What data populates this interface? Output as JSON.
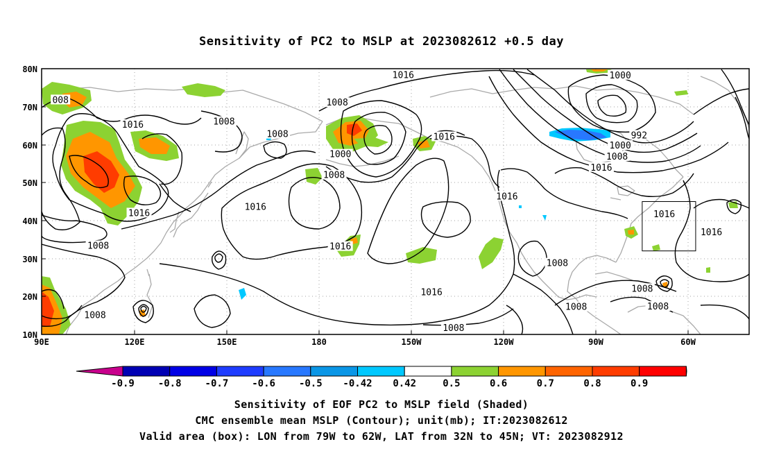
{
  "title": "Sensitivity of PC2 to MSLP at 2023082612 +0.5 day",
  "axes": {
    "lat_ticks": [
      "80N",
      "70N",
      "60N",
      "50N",
      "40N",
      "30N",
      "20N",
      "10N"
    ],
    "lon_ticks": [
      "90E",
      "120E",
      "150E",
      "180",
      "150W",
      "120W",
      "90W",
      "60W"
    ]
  },
  "contour_labels": [
    {
      "text": "008",
      "lon": 96,
      "lat": 71.7
    },
    {
      "text": "1016",
      "lon": 119,
      "lat": 65.2
    },
    {
      "text": "1008",
      "lon": 148,
      "lat": 66.0
    },
    {
      "text": "1008",
      "lon": 165,
      "lat": 62.7
    },
    {
      "text": "1008",
      "lon": -176,
      "lat": 71.0
    },
    {
      "text": "1016",
      "lon": -155,
      "lat": 78.3
    },
    {
      "text": "1000",
      "lon": -175,
      "lat": 57.4
    },
    {
      "text": "1016",
      "lon": -142,
      "lat": 62.0
    },
    {
      "text": "1008",
      "lon": -177,
      "lat": 51.9
    },
    {
      "text": "1016",
      "lon": -122,
      "lat": 46.3
    },
    {
      "text": "1000",
      "lon": -86,
      "lat": 78.2
    },
    {
      "text": "992",
      "lon": -80,
      "lat": 62.4
    },
    {
      "text": "1000",
      "lon": -86,
      "lat": 59.7
    },
    {
      "text": "1008",
      "lon": -87,
      "lat": 56.8
    },
    {
      "text": "1016",
      "lon": -92,
      "lat": 53.9
    },
    {
      "text": "1016",
      "lon": 158,
      "lat": 43.5
    },
    {
      "text": "1016",
      "lon": -72,
      "lat": 41.6
    },
    {
      "text": "1016",
      "lon": -57,
      "lat": 36.9
    },
    {
      "text": "1016",
      "lon": 121,
      "lat": 41.9
    },
    {
      "text": "1008",
      "lon": 108,
      "lat": 33.3
    },
    {
      "text": "1016",
      "lon": -175,
      "lat": 33.1
    },
    {
      "text": "1016",
      "lon": -146,
      "lat": 21.1
    },
    {
      "text": "1008",
      "lon": -106,
      "lat": 28.7
    },
    {
      "text": "1008",
      "lon": -79,
      "lat": 22.0
    },
    {
      "text": "1008",
      "lon": -74,
      "lat": 17.3
    },
    {
      "text": "1008",
      "lon": -100,
      "lat": 17.2
    },
    {
      "text": "1008",
      "lon": -139,
      "lat": 11.6
    },
    {
      "text": "1008",
      "lon": 107,
      "lat": 15.0
    }
  ],
  "colorbar": {
    "labels": [
      "-0.9",
      "-0.8",
      "-0.7",
      "-0.6",
      "-0.5",
      "-0.42",
      "0.42",
      "0.5",
      "0.6",
      "0.7",
      "0.8",
      "0.9"
    ],
    "colors": [
      "#c8008c",
      "#0000b4",
      "#0000e6",
      "#1e3cff",
      "#2878ff",
      "#0a96e6",
      "#00c8ff",
      "#ffffff",
      "#8cd232",
      "#ff9600",
      "#ff6400",
      "#ff3c00",
      "#ff0000",
      "#ff96c8"
    ]
  },
  "valid_box": {
    "lon_from": -79,
    "lon_to": -62,
    "lat_from": 32,
    "lat_to": 45
  },
  "caption": {
    "line1": "Sensitivity of EOF PC2 to MSLP field (Shaded)",
    "line2": "CMC ensemble mean MSLP (Contour); unit(mb); IT:2023082612",
    "line3": "Valid area (box): LON from 79W to 62W, LAT from 32N to 45N; VT: 2023082912"
  }
}
